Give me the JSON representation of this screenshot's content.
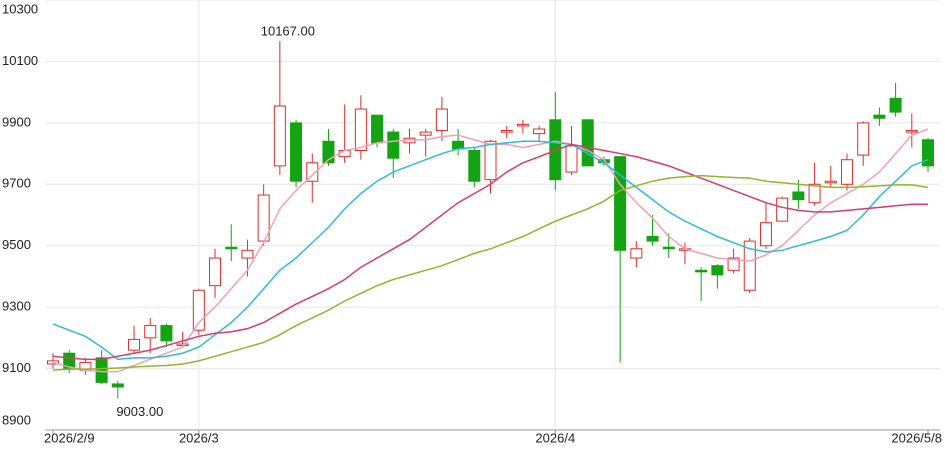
{
  "chart_data": {
    "type": "candlestick",
    "categories": [
      "2026/2/9",
      null,
      null,
      null,
      null,
      null,
      null,
      null,
      null,
      "2026/3",
      null,
      null,
      null,
      null,
      null,
      null,
      null,
      null,
      null,
      null,
      null,
      null,
      null,
      null,
      null,
      null,
      null,
      null,
      null,
      null,
      null,
      "2026/4",
      null,
      null,
      null,
      null,
      null,
      null,
      null,
      null,
      null,
      null,
      null,
      null,
      null,
      null,
      null,
      null,
      null,
      null,
      null,
      null,
      null,
      null,
      "2026/5/8"
    ],
    "open": [
      9115,
      9150,
      9095,
      9135,
      9050,
      9160,
      9200,
      9240,
      9175,
      9225,
      9370,
      9495,
      9460,
      9515,
      9760,
      9900,
      9710,
      9840,
      9790,
      9810,
      9925,
      9870,
      9835,
      9860,
      9875,
      9840,
      9810,
      9715,
      9870,
      9890,
      9865,
      9910,
      9740,
      9910,
      9780,
      9790,
      9460,
      9530,
      9495,
      9485,
      9420,
      9435,
      9420,
      9355,
      9500,
      9580,
      9675,
      9640,
      9705,
      9700,
      9795,
      9925,
      9980,
      9870,
      9845
    ],
    "high": [
      9150,
      9160,
      9135,
      9160,
      9060,
      9240,
      9265,
      9245,
      9220,
      9360,
      9490,
      9570,
      9520,
      9700,
      10167,
      9910,
      9800,
      9880,
      9960,
      9990,
      9925,
      9880,
      9880,
      9880,
      9985,
      9880,
      9820,
      9845,
      9890,
      9910,
      9890,
      10000,
      9890,
      9910,
      9790,
      9790,
      9515,
      9600,
      9540,
      9510,
      9430,
      9440,
      9490,
      9525,
      9640,
      9660,
      9715,
      9770,
      9760,
      9800,
      9905,
      9950,
      10030,
      9930,
      9850
    ],
    "low": [
      9100,
      9085,
      9080,
      9050,
      9003,
      9150,
      9150,
      9170,
      9170,
      9210,
      9330,
      9450,
      9400,
      9500,
      9730,
      9690,
      9640,
      9760,
      9770,
      9780,
      9820,
      9720,
      9800,
      9790,
      9840,
      9795,
      9690,
      9670,
      9850,
      9865,
      9840,
      9680,
      9730,
      9760,
      9760,
      9120,
      9430,
      9500,
      9460,
      9440,
      9320,
      9360,
      9410,
      9345,
      9490,
      9580,
      9620,
      9630,
      9690,
      9680,
      9760,
      9890,
      9920,
      9820,
      9740
    ],
    "close": [
      9125,
      9100,
      9120,
      9055,
      9040,
      9195,
      9240,
      9190,
      9180,
      9355,
      9460,
      9490,
      9485,
      9665,
      9955,
      9710,
      9770,
      9770,
      9810,
      9945,
      9835,
      9785,
      9850,
      9870,
      9945,
      9815,
      9710,
      9840,
      9875,
      9895,
      9880,
      9715,
      9825,
      9760,
      9770,
      9485,
      9490,
      9515,
      9490,
      9490,
      9415,
      9405,
      9460,
      9515,
      9575,
      9655,
      9650,
      9700,
      9710,
      9780,
      9900,
      9915,
      9935,
      9875,
      9760
    ],
    "up_color": "#d9302c",
    "down_color": "#13a313",
    "lines": [
      {
        "color": "#f2a0b4",
        "values": [
          9120,
          9105,
          9095,
          9090,
          9090,
          9110,
          9130,
          9150,
          9170,
          9250,
          9300,
          9360,
          9420,
          9510,
          9620,
          9680,
          9730,
          9780,
          9810,
          9820,
          9835,
          9840,
          9845,
          9845,
          9855,
          9860,
          9845,
          9830,
          9830,
          9820,
          9830,
          9840,
          9830,
          9810,
          9780,
          9700,
          9640,
          9590,
          9530,
          9490,
          9475,
          9460,
          9455,
          9450,
          9470,
          9500,
          9550,
          9600,
          9640,
          9670,
          9700,
          9740,
          9800,
          9860,
          9880
        ]
      },
      {
        "color": "#2bbcd6",
        "values": [
          9245,
          9225,
          9205,
          9170,
          9130,
          9135,
          9135,
          9140,
          9150,
          9170,
          9210,
          9250,
          9300,
          9360,
          9420,
          9460,
          9510,
          9560,
          9620,
          9670,
          9710,
          9740,
          9760,
          9780,
          9800,
          9815,
          9820,
          9830,
          9835,
          9840,
          9840,
          9835,
          9830,
          9800,
          9770,
          9730,
          9690,
          9650,
          9610,
          9580,
          9555,
          9530,
          9510,
          9490,
          9480,
          9485,
          9500,
          9515,
          9530,
          9550,
          9600,
          9660,
          9710,
          9760,
          9780
        ]
      },
      {
        "color": "#d63c6e",
        "values": [
          9140,
          9135,
          9130,
          9130,
          9140,
          9150,
          9160,
          9175,
          9190,
          9205,
          9215,
          9220,
          9230,
          9250,
          9280,
          9310,
          9335,
          9360,
          9390,
          9430,
          9460,
          9490,
          9520,
          9560,
          9600,
          9640,
          9670,
          9700,
          9740,
          9770,
          9790,
          9810,
          9830,
          9820,
          9810,
          9800,
          9790,
          9775,
          9760,
          9740,
          9720,
          9700,
          9680,
          9660,
          9640,
          9625,
          9615,
          9610,
          9610,
          9615,
          9620,
          9625,
          9630,
          9635,
          9635
        ]
      },
      {
        "color": "#94b52a",
        "values": [
          9095,
          9098,
          9098,
          9100,
          9102,
          9105,
          9108,
          9110,
          9115,
          9125,
          9140,
          9155,
          9170,
          9185,
          9210,
          9240,
          9265,
          9290,
          9320,
          9345,
          9370,
          9390,
          9405,
          9420,
          9435,
          9455,
          9475,
          9490,
          9510,
          9530,
          9555,
          9580,
          9600,
          9620,
          9645,
          9680,
          9695,
          9710,
          9720,
          9725,
          9728,
          9725,
          9722,
          9720,
          9710,
          9705,
          9700,
          9695,
          9690,
          9690,
          9692,
          9695,
          9698,
          9698,
          9690
        ]
      }
    ],
    "annotations": [
      {
        "label": "10167.00",
        "value": 10167
      },
      {
        "label": "9003.00",
        "value": 9003
      }
    ],
    "ylim": [
      8900,
      10300
    ],
    "yticks": [
      8900,
      9100,
      9300,
      9500,
      9700,
      9900,
      10100,
      10300
    ],
    "grid": true
  }
}
